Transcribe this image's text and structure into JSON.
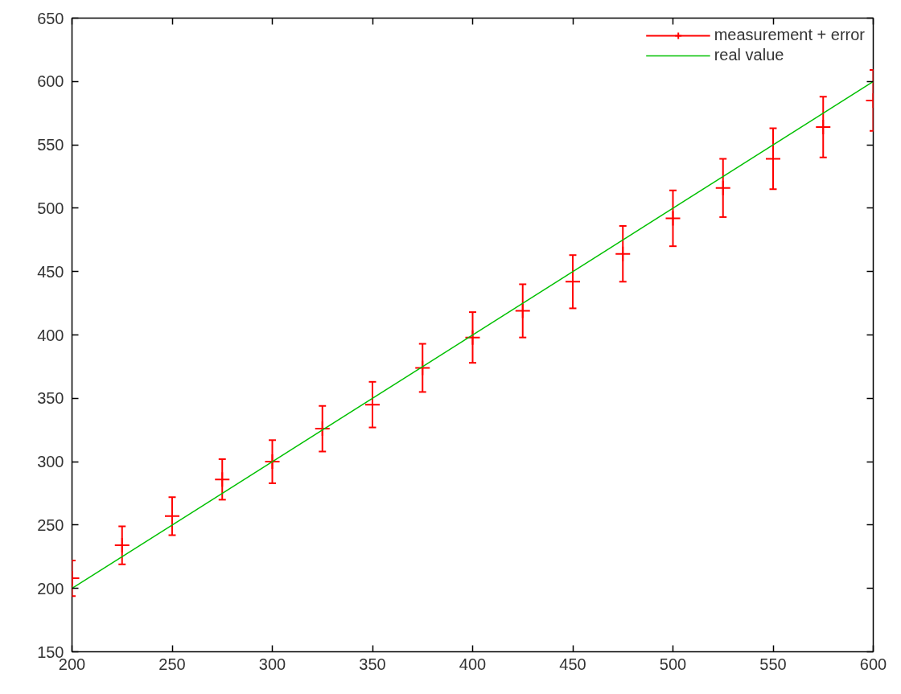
{
  "chart_data": {
    "type": "scatter",
    "x": [
      200,
      225,
      250,
      275,
      300,
      325,
      350,
      375,
      400,
      425,
      450,
      475,
      500,
      525,
      550,
      575,
      600
    ],
    "series": [
      {
        "name": "measurement + error",
        "marker": "cross",
        "color": "#ff0000",
        "values": [
          208,
          234,
          257,
          286,
          300,
          326,
          345,
          374,
          398,
          419,
          442,
          464,
          492,
          516,
          539,
          564,
          585
        ],
        "errors": [
          14,
          15,
          15,
          16,
          17,
          18,
          18,
          19,
          20,
          21,
          21,
          22,
          22,
          23,
          24,
          24,
          24
        ]
      },
      {
        "name": "real value",
        "type": "line",
        "color": "#00c000",
        "x": [
          200,
          600
        ],
        "values": [
          200,
          600
        ]
      }
    ],
    "xlim": [
      200,
      600
    ],
    "ylim": [
      150,
      650
    ],
    "xticks": [
      200,
      250,
      300,
      350,
      400,
      450,
      500,
      550,
      600
    ],
    "yticks": [
      150,
      200,
      250,
      300,
      350,
      400,
      450,
      500,
      550,
      600,
      650
    ],
    "grid": false,
    "legend": "top right"
  }
}
